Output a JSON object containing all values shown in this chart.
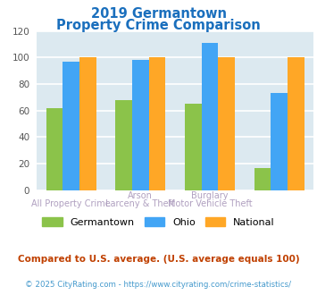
{
  "title_line1": "2019 Germantown",
  "title_line2": "Property Crime Comparison",
  "title_color": "#1a6fbd",
  "germantown": [
    62,
    68,
    65,
    17
  ],
  "ohio": [
    97,
    98,
    111,
    73
  ],
  "national": [
    100,
    100,
    100,
    100
  ],
  "germantown_color": "#8bc34a",
  "ohio_color": "#42a5f5",
  "national_color": "#ffa726",
  "ylim": [
    0,
    120
  ],
  "yticks": [
    0,
    20,
    40,
    60,
    80,
    100,
    120
  ],
  "background_color": "#dce9f0",
  "grid_color": "#ffffff",
  "top_labels": [
    "",
    "Arson",
    "Burglary",
    ""
  ],
  "bot_labels": [
    "All Property Crime",
    "Larceny & Theft",
    "Motor Vehicle Theft",
    ""
  ],
  "label_color": "#b0a0c0",
  "footnote1": "Compared to U.S. average. (U.S. average equals 100)",
  "footnote2": "© 2025 CityRating.com - https://www.cityrating.com/crime-statistics/",
  "footnote1_color": "#c04000",
  "footnote2_color": "#4499cc",
  "legend_labels": [
    "Germantown",
    "Ohio",
    "National"
  ]
}
